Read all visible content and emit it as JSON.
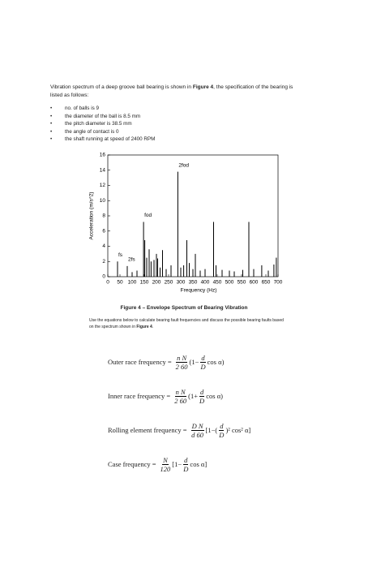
{
  "intro": {
    "before": "Vibration spectrum of a deep groove ball bearing is shown in ",
    "bold": "Figure 4",
    "after": ", the specification of the bearing is listed as follows:"
  },
  "bullets": [
    "no. of balls is 9",
    "the diameter of the ball is 8.5 mm",
    "the pitch diameter is 38.5 mm",
    "the angle of contact is 0",
    "the shaft running at speed of 2400 RPM"
  ],
  "chart_data": {
    "type": "stem",
    "x_label": "Frequency (Hz)",
    "y_label": "Acceleration (m/s^2)",
    "color": "#000000",
    "x": [
      40,
      80,
      100,
      120,
      147,
      152,
      160,
      170,
      178,
      190,
      200,
      205,
      215,
      225,
      240,
      260,
      288,
      300,
      312,
      325,
      335,
      350,
      360,
      380,
      400,
      435,
      445,
      470,
      500,
      520,
      555,
      580,
      600,
      633,
      660,
      683,
      693
    ],
    "values": [
      2.0,
      1.4,
      0.6,
      0.8,
      7.2,
      4.8,
      2.5,
      3.6,
      2.0,
      2.2,
      3.0,
      2.4,
      1.2,
      3.5,
      1.0,
      1.5,
      13.8,
      1.2,
      1.5,
      4.8,
      1.8,
      1.0,
      3.0,
      0.8,
      1.0,
      7.2,
      1.5,
      0.9,
      0.8,
      0.7,
      0.9,
      7.2,
      1.0,
      1.5,
      0.8,
      1.6,
      2.5
    ],
    "peak_labels": [
      "fs",
      "2fs",
      null,
      null,
      "fod",
      null,
      null,
      null,
      null,
      null,
      null,
      null,
      null,
      null,
      null,
      null,
      "2fod",
      null,
      null,
      null,
      null,
      null,
      null,
      null,
      null,
      null,
      null,
      null,
      null,
      null,
      null,
      null,
      null,
      null,
      null,
      null,
      null
    ],
    "xlim": [
      0,
      700
    ],
    "xticks": [
      0,
      50,
      100,
      150,
      200,
      250,
      300,
      350,
      400,
      450,
      500,
      550,
      600,
      650,
      700
    ],
    "ylim": [
      0,
      16
    ],
    "yticks": [
      0,
      2,
      4,
      6,
      8,
      10,
      12,
      14,
      16
    ]
  },
  "caption": "Figure 4 – Envelope Spectrum of Bearing Vibration",
  "instruction": {
    "before": "Use the equations below to calculate bearing fault frequencies and discuss the possible bearing faults based on the spectrum shown in ",
    "bold": "Figure 4",
    "after": "."
  },
  "equations": [
    {
      "label": "Outer race frequency =",
      "tokens": [
        {
          "num": "n N",
          "den": "2 60"
        },
        "(1−",
        {
          "num": "d",
          "den": "D"
        },
        "cos α)"
      ]
    },
    {
      "label": "Inner race frequency =",
      "tokens": [
        {
          "num": "n N",
          "den": "2 60"
        },
        "(1+",
        {
          "num": "d",
          "den": "D"
        },
        "cos α)"
      ]
    },
    {
      "label": "Rolling element frequency =",
      "tokens": [
        {
          "num": "D N",
          "den": "d 60"
        },
        "[1−(",
        {
          "num": "d",
          "den": "D"
        },
        ")² cos² α]"
      ]
    },
    {
      "label": "Case frequency =",
      "tokens": [
        {
          "num": "N",
          "den": "120"
        },
        "[1−",
        {
          "num": "d",
          "den": "D"
        },
        "cos α]"
      ]
    }
  ]
}
